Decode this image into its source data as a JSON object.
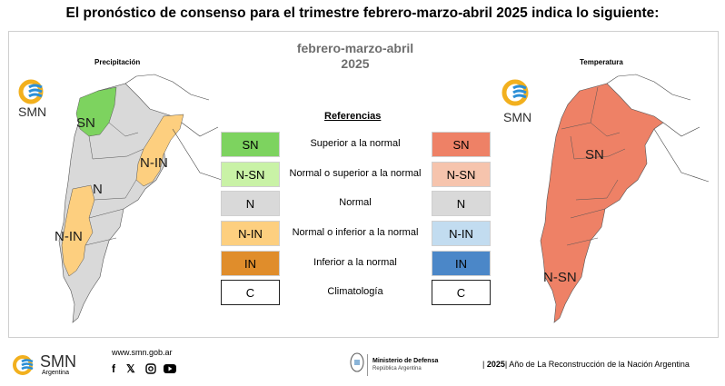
{
  "title": "El pronóstico de consenso para el trimestre febrero-marzo-abril 2025 indica lo siguiente:",
  "period": {
    "months": "febrero-marzo-abril",
    "year": "2025"
  },
  "maps": {
    "precip_title": "Precipitación",
    "temp_title": "Temperatura",
    "precip_labels": [
      "SN",
      "N-IN",
      "N",
      "N-IN"
    ],
    "temp_labels": [
      "SN",
      "N-SN"
    ]
  },
  "references": {
    "heading": "Referencias",
    "rows": [
      {
        "precip": "SN",
        "label": "Superior a la normal",
        "temp": "SN",
        "precip_color": "#7dd35f",
        "temp_color": "#ee8166"
      },
      {
        "precip": "N-SN",
        "label": "Normal o superior a la normal",
        "temp": "N-SN",
        "precip_color": "#c9f2a6",
        "temp_color": "#f6c4ad"
      },
      {
        "precip": "N",
        "label": "Normal",
        "temp": "N",
        "precip_color": "#d9d9d9",
        "temp_color": "#d9d9d9"
      },
      {
        "precip": "N-IN",
        "label": "Normal o inferior a la normal",
        "temp": "N-IN",
        "precip_color": "#fdcf7f",
        "temp_color": "#c2dcf0"
      },
      {
        "precip": "IN",
        "label": "Inferior a la normal",
        "temp": "IN",
        "precip_color": "#e08d2b",
        "temp_color": "#4b87c8"
      },
      {
        "precip": "C",
        "label": "Climatología",
        "temp": "C",
        "precip_color": "#ffffff",
        "temp_color": "#ffffff"
      }
    ]
  },
  "logos": {
    "smn": "SMN",
    "smn_sub": "Argentina"
  },
  "footer": {
    "url": "www.smn.gob.ar",
    "social": [
      "facebook-icon",
      "x-icon",
      "instagram-icon",
      "youtube-icon"
    ],
    "ministry": "Ministerio de Defensa",
    "ministry_sub": "República Argentina",
    "year_bold": "2025",
    "year_text": "Año de La Reconstrucción de la Nación Argentina"
  }
}
